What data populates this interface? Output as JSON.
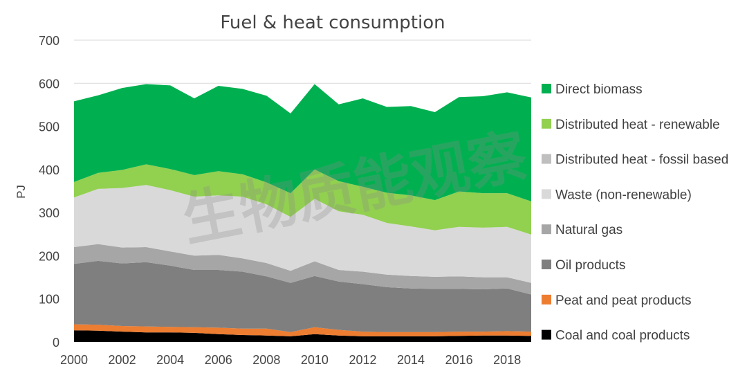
{
  "chart_data": {
    "type": "area",
    "stacked": true,
    "title": "Fuel & heat consumption",
    "xlabel": "",
    "ylabel": "PJ",
    "ylim": [
      0,
      700
    ],
    "yticks": [
      0,
      100,
      200,
      300,
      400,
      500,
      600,
      700
    ],
    "xticks": [
      2000,
      2002,
      2004,
      2006,
      2008,
      2010,
      2012,
      2014,
      2016,
      2018
    ],
    "x": [
      2000,
      2001,
      2002,
      2003,
      2004,
      2005,
      2006,
      2007,
      2008,
      2009,
      2010,
      2011,
      2012,
      2013,
      2014,
      2015,
      2016,
      2017,
      2018,
      2019
    ],
    "legend_position": "right",
    "series": [
      {
        "name": "Coal and coal products",
        "color": "#000000",
        "values": [
          27,
          26,
          24,
          22,
          22,
          21,
          18,
          16,
          15,
          13,
          18,
          15,
          13,
          13,
          13,
          13,
          14,
          15,
          15,
          14
        ]
      },
      {
        "name": "Peat and peat products",
        "color": "#ed7d31",
        "values": [
          14,
          14,
          13,
          14,
          13,
          13,
          15,
          15,
          16,
          10,
          16,
          13,
          11,
          10,
          10,
          10,
          10,
          9,
          10,
          10
        ]
      },
      {
        "name": "Oil products",
        "color": "#7f7f7f",
        "values": [
          140,
          148,
          145,
          149,
          142,
          133,
          134,
          132,
          121,
          114,
          119,
          112,
          110,
          104,
          101,
          100,
          99,
          98,
          99,
          86
        ]
      },
      {
        "name": "Natural gas",
        "color": "#a6a6a6",
        "values": [
          39,
          39,
          37,
          35,
          33,
          33,
          35,
          31,
          31,
          28,
          34,
          27,
          29,
          29,
          29,
          28,
          29,
          28,
          26,
          27
        ]
      },
      {
        "name": "Waste (non-renewable)",
        "color": "#d9d9d9",
        "values": [
          115,
          128,
          138,
          144,
          142,
          137,
          138,
          143,
          136,
          125,
          145,
          136,
          132,
          120,
          115,
          108,
          115,
          115,
          117,
          112
        ]
      },
      {
        "name": "Distributed heat - fossil based",
        "color": "#bfbfbf",
        "values": [
          0,
          0,
          0,
          0,
          0,
          0,
          0,
          0,
          0,
          0,
          0,
          0,
          0,
          0,
          0,
          0,
          0,
          0,
          0,
          0
        ]
      },
      {
        "name": "Distributed heat - renewable",
        "color": "#92d050",
        "values": [
          36,
          37,
          42,
          48,
          49,
          50,
          56,
          52,
          51,
          55,
          68,
          70,
          65,
          70,
          72,
          70,
          82,
          80,
          78,
          77
        ]
      },
      {
        "name": "Direct biomass",
        "color": "#00b050",
        "values": [
          187,
          180,
          190,
          186,
          194,
          178,
          198,
          198,
          201,
          185,
          198,
          178,
          205,
          199,
          207,
          204,
          219,
          225,
          234,
          241
        ]
      }
    ],
    "watermark": "生物质能观察"
  }
}
